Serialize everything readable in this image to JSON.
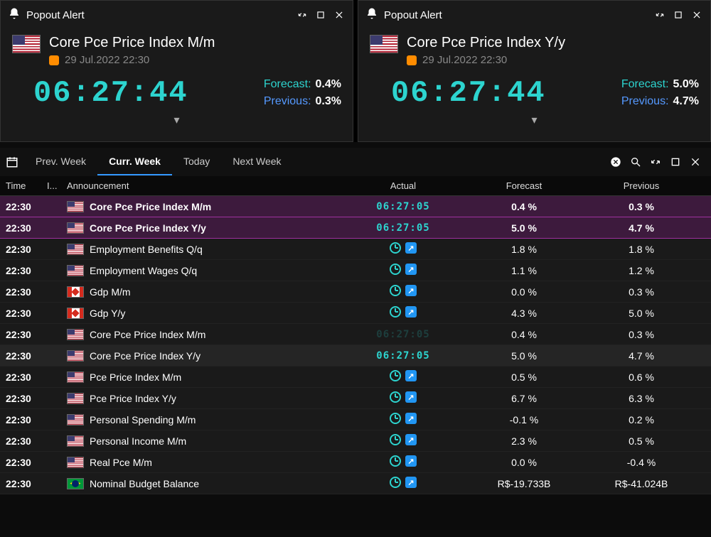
{
  "alerts": [
    {
      "title": "Core Pce Price Index M/m",
      "titlebar_label": "Popout Alert",
      "datetime": "29 Jul.2022 22:30",
      "importance_color": "#ff8c00",
      "flag": "us",
      "countdown": "06:27:44",
      "forecast_label": "Forecast:",
      "forecast_value": "0.4%",
      "previous_label": "Previous:",
      "previous_value": "0.3%"
    },
    {
      "title": "Core Pce Price Index Y/y",
      "titlebar_label": "Popout Alert",
      "datetime": "29 Jul.2022 22:30",
      "importance_color": "#ff8c00",
      "flag": "us",
      "countdown": "06:27:44",
      "forecast_label": "Forecast:",
      "forecast_value": "5.0%",
      "previous_label": "Previous:",
      "previous_value": "4.7%"
    }
  ],
  "tabs": {
    "prev": "Prev. Week",
    "curr": "Curr. Week",
    "today": "Today",
    "next": "Next Week"
  },
  "columns": {
    "time": "Time",
    "imp": "I...",
    "ann": "Announcement",
    "actual": "Actual",
    "forecast": "Forecast",
    "previous": "Previous"
  },
  "rows": [
    {
      "time": "22:30",
      "imp": "orange",
      "flag": "us",
      "ann": "Core Pce Price Index M/m",
      "actual_type": "timer",
      "actual": "06:27:05",
      "forecast": "0.4 %",
      "previous": "0.3 %",
      "style": "highlight"
    },
    {
      "time": "22:30",
      "imp": "orange",
      "flag": "us",
      "ann": "Core Pce Price Index Y/y",
      "actual_type": "timer",
      "actual": "06:27:05",
      "forecast": "5.0 %",
      "previous": "4.7 %",
      "style": "highlight"
    },
    {
      "time": "22:30",
      "imp": "yellow",
      "flag": "us",
      "ann": "Employment Benefits Q/q",
      "actual_type": "icons",
      "forecast": "1.8 %",
      "previous": "1.8 %",
      "style": "normal"
    },
    {
      "time": "22:30",
      "imp": "yellow",
      "flag": "us",
      "ann": "Employment Wages Q/q",
      "actual_type": "icons",
      "forecast": "1.1 %",
      "previous": "1.2 %",
      "style": "normal"
    },
    {
      "time": "22:30",
      "imp": "red",
      "flag": "ca",
      "ann": "Gdp M/m",
      "actual_type": "icons",
      "forecast": "0.0 %",
      "previous": "0.3 %",
      "style": "normal"
    },
    {
      "time": "22:30",
      "imp": "orange",
      "flag": "ca",
      "ann": "Gdp Y/y",
      "actual_type": "icons",
      "forecast": "4.3 %",
      "previous": "5.0 %",
      "style": "normal"
    },
    {
      "time": "22:30",
      "imp": "orange",
      "flag": "us",
      "ann": "Core Pce Price Index M/m",
      "actual_type": "timer_faded",
      "actual": "06:27:05",
      "forecast": "0.4 %",
      "previous": "0.3 %",
      "style": "normal"
    },
    {
      "time": "22:30",
      "imp": "orange",
      "flag": "us",
      "ann": "Core Pce Price Index Y/y",
      "actual_type": "timer",
      "actual": "06:27:05",
      "forecast": "5.0 %",
      "previous": "4.7 %",
      "style": "darker"
    },
    {
      "time": "22:30",
      "imp": "orange",
      "flag": "us",
      "ann": "Pce Price Index M/m",
      "actual_type": "icons",
      "forecast": "0.5 %",
      "previous": "0.6 %",
      "style": "normal"
    },
    {
      "time": "22:30",
      "imp": "orange",
      "flag": "us",
      "ann": "Pce Price Index Y/y",
      "actual_type": "icons",
      "forecast": "6.7 %",
      "previous": "6.3 %",
      "style": "normal"
    },
    {
      "time": "22:30",
      "imp": "orange",
      "flag": "us",
      "ann": "Personal Spending M/m",
      "actual_type": "icons",
      "forecast": "-0.1 %",
      "previous": "0.2 %",
      "style": "normal"
    },
    {
      "time": "22:30",
      "imp": "orange",
      "flag": "us",
      "ann": "Personal Income M/m",
      "actual_type": "icons",
      "forecast": "2.3 %",
      "previous": "0.5 %",
      "style": "normal"
    },
    {
      "time": "22:30",
      "imp": "orange",
      "flag": "us",
      "ann": "Real Pce M/m",
      "actual_type": "icons",
      "forecast": "0.0 %",
      "previous": "-0.4 %",
      "style": "normal"
    },
    {
      "time": "22:30",
      "imp": "orange",
      "flag": "br",
      "ann": "Nominal Budget Balance",
      "actual_type": "icons",
      "forecast": "R$-19.733B",
      "previous": "R$-41.024B",
      "style": "normal"
    }
  ],
  "colors": {
    "accent_teal": "#2dd4cf",
    "accent_blue": "#5599ff",
    "tab_underline": "#3399ff",
    "bg": "#1a1a1a"
  }
}
